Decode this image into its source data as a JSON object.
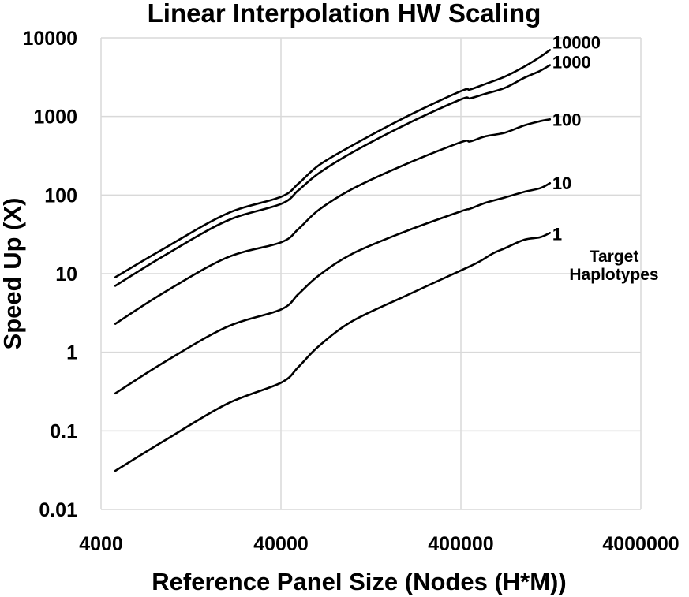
{
  "chart_data": {
    "type": "line",
    "title": "Linear Interpolation HW Scaling",
    "xlabel": "Reference Panel Size (Nodes (H*M))",
    "ylabel": "Speed Up (X)",
    "x_scale": "log",
    "y_scale": "log",
    "xlim": [
      4000,
      4000000
    ],
    "ylim": [
      0.01,
      10000
    ],
    "x_ticks": [
      "4000",
      "40000",
      "400000",
      "4000000"
    ],
    "y_ticks": [
      "0.01",
      "0.1",
      "1",
      "10",
      "100",
      "1000",
      "10000"
    ],
    "grid": true,
    "legend_title": "Target Haplotypes",
    "series": [
      {
        "name": "1",
        "points": [
          [
            4800,
            0.031
          ],
          [
            9000,
            0.075
          ],
          [
            20000,
            0.22
          ],
          [
            40000,
            0.41
          ],
          [
            50000,
            0.65
          ],
          [
            65000,
            1.2
          ],
          [
            100000,
            2.5
          ],
          [
            200000,
            5.3
          ],
          [
            400000,
            11
          ],
          [
            500000,
            14
          ],
          [
            600000,
            18
          ],
          [
            700000,
            21
          ],
          [
            900000,
            27
          ],
          [
            1100000,
            29
          ],
          [
            1250000,
            33
          ]
        ]
      },
      {
        "name": "10",
        "points": [
          [
            4800,
            0.3
          ],
          [
            9000,
            0.75
          ],
          [
            20000,
            2.1
          ],
          [
            40000,
            3.5
          ],
          [
            50000,
            5.5
          ],
          [
            65000,
            9.5
          ],
          [
            100000,
            18
          ],
          [
            200000,
            35
          ],
          [
            400000,
            62
          ],
          [
            450000,
            67
          ],
          [
            550000,
            80
          ],
          [
            700000,
            93
          ],
          [
            900000,
            110
          ],
          [
            1100000,
            122
          ],
          [
            1250000,
            142
          ]
        ]
      },
      {
        "name": "100",
        "points": [
          [
            4800,
            2.3
          ],
          [
            9000,
            5.8
          ],
          [
            20000,
            16
          ],
          [
            40000,
            25
          ],
          [
            50000,
            37
          ],
          [
            65000,
            65
          ],
          [
            100000,
            120
          ],
          [
            200000,
            250
          ],
          [
            400000,
            470
          ],
          [
            450000,
            480
          ],
          [
            550000,
            560
          ],
          [
            700000,
            620
          ],
          [
            900000,
            770
          ],
          [
            1100000,
            870
          ],
          [
            1250000,
            920
          ]
        ]
      },
      {
        "name": "1000",
        "points": [
          [
            4800,
            7
          ],
          [
            9000,
            17
          ],
          [
            20000,
            47
          ],
          [
            40000,
            77
          ],
          [
            50000,
            115
          ],
          [
            65000,
            190
          ],
          [
            100000,
            350
          ],
          [
            200000,
            800
          ],
          [
            400000,
            1650
          ],
          [
            450000,
            1700
          ],
          [
            550000,
            1950
          ],
          [
            700000,
            2300
          ],
          [
            900000,
            3100
          ],
          [
            1100000,
            3800
          ],
          [
            1250000,
            4500
          ]
        ]
      },
      {
        "name": "10000",
        "points": [
          [
            4800,
            9
          ],
          [
            9000,
            21
          ],
          [
            20000,
            58
          ],
          [
            40000,
            95
          ],
          [
            50000,
            140
          ],
          [
            65000,
            240
          ],
          [
            100000,
            430
          ],
          [
            200000,
            1000
          ],
          [
            400000,
            2100
          ],
          [
            450000,
            2200
          ],
          [
            550000,
            2600
          ],
          [
            700000,
            3200
          ],
          [
            900000,
            4300
          ],
          [
            1100000,
            5700
          ],
          [
            1250000,
            7000
          ]
        ]
      }
    ]
  }
}
